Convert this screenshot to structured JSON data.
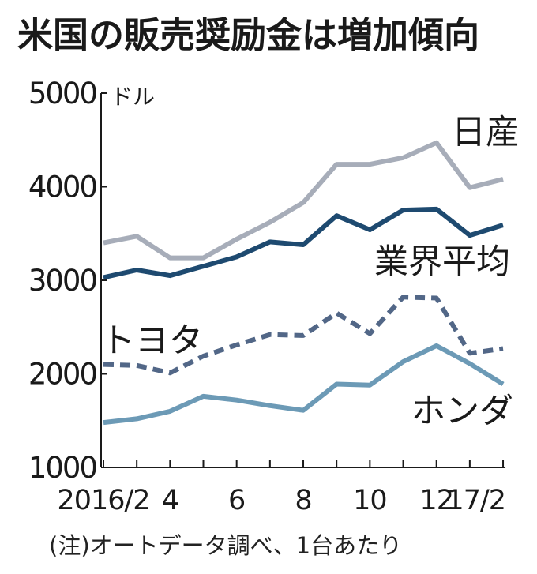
{
  "title": "米国の販売奨励金は増加傾向",
  "note": "(注)オートデータ調べ、1台あたり",
  "chart_data": {
    "type": "line",
    "title": "米国の販売奨励金は増加傾向",
    "ylabel": "ドル",
    "ylim": [
      1000,
      5000
    ],
    "yticks": [
      1000,
      2000,
      3000,
      4000,
      5000
    ],
    "grid": false,
    "x": [
      "2016/2",
      "3",
      "4",
      "5",
      "6",
      "7",
      "8",
      "9",
      "10",
      "11",
      "12",
      "1",
      "17/2"
    ],
    "xtick_labels": [
      {
        "index": 0,
        "label": "2016/2"
      },
      {
        "index": 2,
        "label": "4"
      },
      {
        "index": 4,
        "label": "6"
      },
      {
        "index": 6,
        "label": "8"
      },
      {
        "index": 8,
        "label": "10"
      },
      {
        "index": 10,
        "label": "12"
      },
      {
        "index": 12,
        "label": "17/2"
      }
    ],
    "series": [
      {
        "name": "日産",
        "color": "#a7adb9",
        "style": "solid",
        "values": [
          3400,
          3470,
          3240,
          3240,
          3440,
          3620,
          3830,
          4240,
          4240,
          4310,
          4470,
          3990,
          4080
        ]
      },
      {
        "name": "業界平均",
        "color": "#1e4a70",
        "style": "solid",
        "values": [
          3030,
          3110,
          3050,
          3150,
          3250,
          3410,
          3380,
          3690,
          3540,
          3750,
          3760,
          3480,
          3590
        ]
      },
      {
        "name": "トヨタ",
        "color": "#526787",
        "style": "dashed",
        "values": [
          2100,
          2090,
          2010,
          2190,
          2310,
          2420,
          2410,
          2650,
          2430,
          2820,
          2810,
          2220,
          2270
        ]
      },
      {
        "name": "ホンダ",
        "color": "#6c9ab6",
        "style": "solid",
        "values": [
          1480,
          1520,
          1600,
          1760,
          1720,
          1660,
          1610,
          1890,
          1880,
          2130,
          2300,
          2110,
          1890
        ]
      }
    ],
    "series_labels": [
      "日産",
      "業界平均",
      "トヨタ",
      "ホンダ"
    ]
  }
}
